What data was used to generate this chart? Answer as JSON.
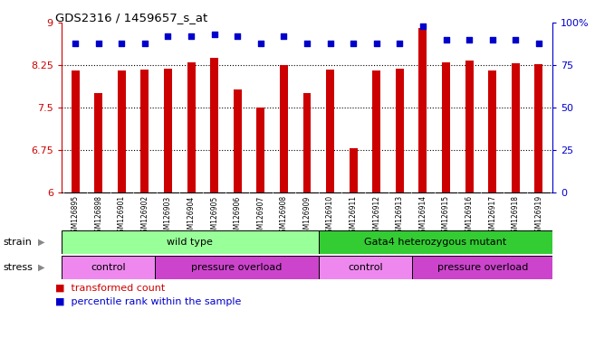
{
  "title": "GDS2316 / 1459657_s_at",
  "samples": [
    "GSM126895",
    "GSM126898",
    "GSM126901",
    "GSM126902",
    "GSM126903",
    "GSM126904",
    "GSM126905",
    "GSM126906",
    "GSM126907",
    "GSM126908",
    "GSM126909",
    "GSM126910",
    "GSM126911",
    "GSM126912",
    "GSM126913",
    "GSM126914",
    "GSM126915",
    "GSM126916",
    "GSM126917",
    "GSM126918",
    "GSM126919"
  ],
  "transformed_count": [
    8.15,
    7.75,
    8.15,
    8.17,
    8.19,
    8.3,
    8.37,
    7.82,
    7.5,
    8.25,
    7.75,
    8.17,
    6.78,
    8.15,
    8.19,
    8.9,
    8.3,
    8.33,
    8.15,
    8.28,
    8.26
  ],
  "percentile_rank": [
    88,
    88,
    88,
    88,
    92,
    92,
    93,
    92,
    88,
    92,
    88,
    88,
    88,
    88,
    88,
    98,
    90,
    90,
    90,
    90,
    88
  ],
  "bar_color": "#cc0000",
  "dot_color": "#0000cc",
  "ylim_left": [
    6,
    9
  ],
  "ylim_right": [
    0,
    100
  ],
  "yticks_left": [
    6,
    6.75,
    7.5,
    8.25,
    9
  ],
  "yticks_right": [
    0,
    25,
    50,
    75,
    100
  ],
  "ytick_labels_left": [
    "6",
    "6.75",
    "7.5",
    "8.25",
    "9"
  ],
  "ytick_labels_right": [
    "0",
    "25",
    "50",
    "75",
    "100%"
  ],
  "hlines": [
    6.75,
    7.5,
    8.25
  ],
  "strain_groups": [
    {
      "label": "wild type",
      "start": 0,
      "end": 11,
      "color": "#99ff99"
    },
    {
      "label": "Gata4 heterozygous mutant",
      "start": 11,
      "end": 21,
      "color": "#33cc33"
    }
  ],
  "stress_groups": [
    {
      "label": "control",
      "start": 0,
      "end": 4,
      "color": "#ee88ee"
    },
    {
      "label": "pressure overload",
      "start": 4,
      "end": 11,
      "color": "#cc44cc"
    },
    {
      "label": "control",
      "start": 11,
      "end": 15,
      "color": "#ee88ee"
    },
    {
      "label": "pressure overload",
      "start": 15,
      "end": 21,
      "color": "#cc44cc"
    }
  ],
  "legend_items": [
    {
      "label": "transformed count",
      "color": "#cc0000"
    },
    {
      "label": "percentile rank within the sample",
      "color": "#0000cc"
    }
  ],
  "strain_label": "strain",
  "stress_label": "stress",
  "bg_color": "#ffffff",
  "plot_bg_color": "#ffffff",
  "xtick_bg_color": "#d0d0d0"
}
